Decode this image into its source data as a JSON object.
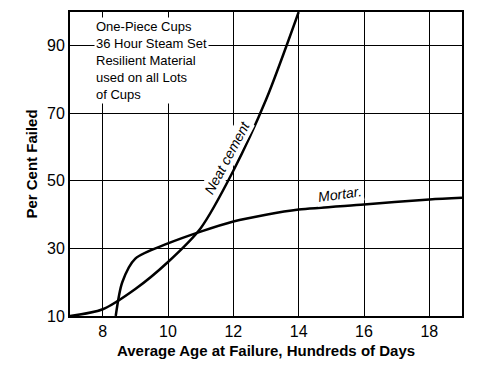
{
  "chart_data": {
    "type": "line",
    "annotation": [
      "One-Piece Cups",
      "36 Hour Steam Set",
      "Resilient Material",
      "used on all Lots",
      "of Cups"
    ],
    "x_label": "Average Age at Failure, Hundreds of Days",
    "y_label": "Per Cent Failed",
    "series": [
      {
        "name": "Neat cement",
        "color": "#000000",
        "x": [
          7,
          8,
          9,
          10,
          11,
          12,
          13,
          14
        ],
        "values": [
          10,
          12,
          18,
          26,
          36,
          53,
          74,
          100
        ]
      },
      {
        "name": "Mortar.",
        "color": "#000000",
        "x": [
          8.4,
          8.6,
          9,
          10,
          11,
          12,
          13,
          14,
          16,
          18,
          19
        ],
        "values": [
          10,
          20,
          27,
          31.5,
          35,
          38,
          40,
          41.5,
          43,
          44.5,
          45
        ]
      }
    ],
    "xlim": [
      7,
      19
    ],
    "xticks": [
      8,
      10,
      12,
      14,
      16,
      18
    ],
    "ylim": [
      10,
      100
    ],
    "yticks": [
      10,
      30,
      50,
      70,
      90
    ],
    "grid": true
  }
}
